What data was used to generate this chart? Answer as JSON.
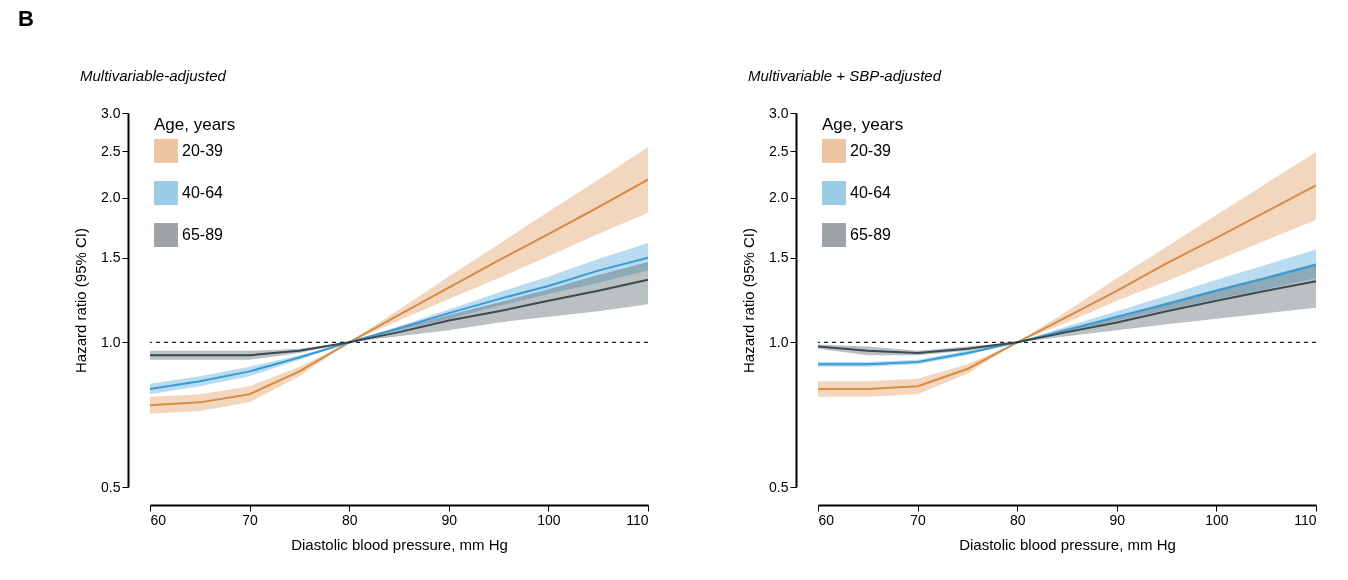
{
  "chart_data": [
    {
      "type": "line",
      "title": "Multivariable-adjusted",
      "xlabel": "Diastolic blood pressure, mm Hg",
      "ylabel": "Hazard ratio (95% CI)",
      "legend_title": "Age, years",
      "legend": "top left",
      "grid": false,
      "log": "y",
      "annotations": [
        "B"
      ],
      "x": [
        60,
        65,
        70,
        75,
        80,
        85,
        90,
        95,
        100,
        105,
        110
      ],
      "xlim": [
        60,
        110
      ],
      "xticks": [
        60,
        70,
        80,
        90,
        100,
        110
      ],
      "ylim": [
        0.5,
        3.0
      ],
      "yticks": [
        0.5,
        {
          "value": 1,
          "label": "1.0"
        },
        1.5,
        {
          "value": 2,
          "label": "2.0"
        },
        2.5,
        {
          "value": 3,
          "label": "3.0"
        }
      ],
      "ref_lines": [
        {
          "axis": "y",
          "value": 1,
          "line_style": "dashed",
          "color": "#222222"
        }
      ],
      "series": [
        {
          "name": "20-39",
          "color": "#d98a45",
          "values": [
            0.74,
            0.75,
            0.78,
            0.87,
            1.0,
            1.14,
            1.3,
            1.48,
            1.68,
            1.91,
            2.18
          ],
          "lower": [
            0.71,
            0.72,
            0.75,
            0.85,
            1.0,
            1.11,
            1.23,
            1.36,
            1.51,
            1.68,
            1.86
          ],
          "upper": [
            0.77,
            0.78,
            0.81,
            0.89,
            1.0,
            1.17,
            1.37,
            1.6,
            1.87,
            2.18,
            2.55
          ]
        },
        {
          "name": "40-64",
          "color": "#3a9ad3",
          "values": [
            0.8,
            0.83,
            0.87,
            0.93,
            1.0,
            1.07,
            1.15,
            1.23,
            1.31,
            1.41,
            1.5
          ],
          "lower": [
            0.78,
            0.81,
            0.85,
            0.92,
            1.0,
            1.06,
            1.12,
            1.19,
            1.26,
            1.33,
            1.41
          ],
          "upper": [
            0.82,
            0.85,
            0.89,
            0.94,
            1.0,
            1.08,
            1.17,
            1.27,
            1.37,
            1.49,
            1.61
          ]
        },
        {
          "name": "65-89",
          "color": "#3d4a50",
          "values": [
            0.94,
            0.94,
            0.94,
            0.96,
            1.0,
            1.05,
            1.11,
            1.16,
            1.22,
            1.28,
            1.35
          ],
          "lower": [
            0.92,
            0.92,
            0.92,
            0.95,
            1.0,
            1.03,
            1.06,
            1.1,
            1.13,
            1.16,
            1.2
          ],
          "upper": [
            0.96,
            0.96,
            0.96,
            0.97,
            1.0,
            1.07,
            1.14,
            1.21,
            1.29,
            1.38,
            1.47
          ]
        }
      ]
    },
    {
      "type": "line",
      "title": "Multivariable + SBP-adjusted",
      "xlabel": "Diastolic blood pressure, mm Hg",
      "ylabel": "Hazard ratio (95% CI)",
      "legend_title": "Age, years",
      "legend": "top left",
      "grid": false,
      "log": "y",
      "x": [
        60,
        65,
        70,
        75,
        80,
        85,
        90,
        95,
        100,
        105,
        110
      ],
      "xlim": [
        60,
        110
      ],
      "xticks": [
        60,
        70,
        80,
        90,
        100,
        110
      ],
      "ylim": [
        0.5,
        3.0
      ],
      "yticks": [
        0.5,
        {
          "value": 1,
          "label": "1.0"
        },
        1.5,
        {
          "value": 2,
          "label": "2.0"
        },
        2.5,
        {
          "value": 3,
          "label": "3.0"
        }
      ],
      "ref_lines": [
        {
          "axis": "y",
          "value": 1,
          "line_style": "dashed",
          "color": "#222222"
        }
      ],
      "series": [
        {
          "name": "20-39",
          "color": "#d98a45",
          "values": [
            0.8,
            0.8,
            0.81,
            0.88,
            1.0,
            1.13,
            1.28,
            1.46,
            1.65,
            1.87,
            2.12
          ],
          "lower": [
            0.77,
            0.77,
            0.78,
            0.86,
            1.0,
            1.1,
            1.22,
            1.34,
            1.48,
            1.63,
            1.8
          ],
          "upper": [
            0.83,
            0.83,
            0.84,
            0.9,
            1.0,
            1.16,
            1.36,
            1.58,
            1.84,
            2.14,
            2.49
          ]
        },
        {
          "name": "40-64",
          "color": "#3a9ad3",
          "values": [
            0.9,
            0.9,
            0.91,
            0.95,
            1.0,
            1.06,
            1.13,
            1.2,
            1.28,
            1.36,
            1.45
          ],
          "lower": [
            0.89,
            0.89,
            0.9,
            0.94,
            1.0,
            1.05,
            1.11,
            1.17,
            1.23,
            1.29,
            1.36
          ],
          "upper": [
            0.91,
            0.91,
            0.92,
            0.96,
            1.0,
            1.08,
            1.16,
            1.25,
            1.35,
            1.45,
            1.56
          ]
        },
        {
          "name": "65-89",
          "color": "#3d4a50",
          "values": [
            0.98,
            0.96,
            0.95,
            0.97,
            1.0,
            1.05,
            1.1,
            1.16,
            1.22,
            1.28,
            1.34
          ],
          "lower": [
            0.97,
            0.94,
            0.94,
            0.96,
            1.0,
            1.03,
            1.06,
            1.09,
            1.12,
            1.15,
            1.18
          ],
          "upper": [
            0.99,
            0.98,
            0.96,
            0.98,
            1.0,
            1.07,
            1.13,
            1.21,
            1.29,
            1.37,
            1.46
          ]
        }
      ]
    }
  ]
}
